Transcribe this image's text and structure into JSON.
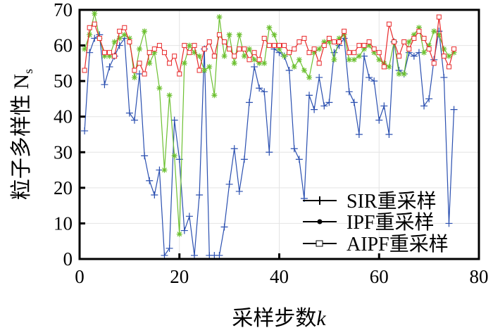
{
  "chart_data": {
    "type": "line",
    "title": "",
    "xlabel": "采样步数",
    "xlabel_var": "k",
    "ylabel": "粒子多样性 N",
    "ylabel_sub": "s",
    "xlim": [
      0,
      80
    ],
    "ylim": [
      0,
      70
    ],
    "xticks": [
      0,
      20,
      40,
      60,
      80
    ],
    "yticks": [
      0,
      10,
      20,
      30,
      40,
      50,
      60,
      70
    ],
    "grid": true,
    "legend_position": "bottom-right",
    "x": [
      1,
      2,
      3,
      4,
      5,
      6,
      7,
      8,
      9,
      10,
      11,
      12,
      13,
      14,
      15,
      16,
      17,
      18,
      19,
      20,
      21,
      22,
      23,
      24,
      25,
      26,
      27,
      28,
      29,
      30,
      31,
      32,
      33,
      34,
      35,
      36,
      37,
      38,
      39,
      40,
      41,
      42,
      43,
      44,
      45,
      46,
      47,
      48,
      49,
      50,
      51,
      52,
      53,
      54,
      55,
      56,
      57,
      58,
      59,
      60,
      61,
      62,
      63,
      64,
      65,
      66,
      67,
      68,
      69,
      70,
      71,
      72,
      73,
      74,
      75
    ],
    "series": [
      {
        "name": "SIR重采样",
        "color": "#2a4fb0",
        "marker": "plus",
        "values": [
          36,
          58,
          62,
          63,
          49,
          54,
          57,
          60,
          62,
          41,
          39,
          52,
          29,
          22,
          18,
          25,
          1,
          3,
          39,
          28,
          8,
          12,
          1,
          18,
          59,
          1,
          1,
          1,
          9,
          21,
          31,
          19,
          28,
          44,
          54,
          48,
          47,
          30,
          59,
          58,
          57,
          53,
          31,
          28,
          17,
          46,
          42,
          51,
          43,
          44,
          58,
          60,
          62,
          47,
          44,
          35,
          57,
          51,
          50,
          39,
          43,
          35,
          61,
          53,
          52,
          58,
          57,
          58,
          43,
          45,
          56,
          64,
          51,
          10,
          42
        ]
      },
      {
        "name": "IPF重采样",
        "color": "#6cc030",
        "marker": "star",
        "values": [
          59,
          63,
          69,
          62,
          57,
          57,
          61,
          62,
          63,
          62,
          51,
          59,
          64,
          55,
          58,
          48,
          25,
          46,
          29,
          7,
          55,
          60,
          58,
          57,
          53,
          54,
          46,
          68,
          57,
          63,
          55,
          63,
          57,
          59,
          56,
          55,
          55,
          65,
          63,
          59,
          57,
          58,
          54,
          56,
          53,
          51,
          58,
          59,
          61,
          61,
          56,
          62,
          63,
          56,
          56,
          57,
          59,
          60,
          58,
          56,
          55,
          54,
          61,
          52,
          52,
          61,
          63,
          65,
          58,
          60,
          64,
          63,
          59,
          57,
          58
        ]
      },
      {
        "name": "AIPF重采样",
        "color": "#e8282a",
        "marker": "square",
        "values": [
          53,
          65,
          66,
          62,
          58,
          58,
          57,
          64,
          65,
          61,
          53,
          55,
          52,
          58,
          59,
          60,
          58,
          55,
          57,
          52,
          60,
          58,
          60,
          53,
          59,
          61,
          57,
          63,
          61,
          59,
          57,
          59,
          59,
          56,
          58,
          56,
          62,
          60,
          60,
          60,
          60,
          58,
          59,
          61,
          62,
          58,
          59,
          55,
          60,
          62,
          61,
          61,
          64,
          58,
          58,
          60,
          60,
          61,
          59,
          58,
          54,
          66,
          61,
          57,
          61,
          59,
          62,
          64,
          62,
          59,
          55,
          68,
          57,
          54,
          59
        ]
      }
    ]
  }
}
